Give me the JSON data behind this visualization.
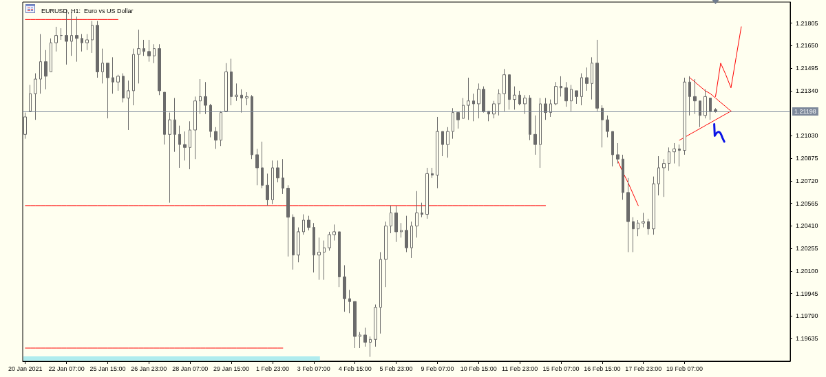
{
  "chart_data": {
    "type": "candlestick",
    "title": "EURUSD, H1:  Euro vs US Dollar",
    "color": "#6b6b6b",
    "categories": [
      "20 Jan 2021",
      null,
      null,
      null,
      null,
      null,
      null,
      null,
      "22 Jan 07:00",
      null,
      null,
      null,
      null,
      null,
      null,
      null,
      "25 Jan 15:00",
      null,
      null,
      null,
      null,
      null,
      null,
      null,
      "26 Jan 23:00",
      null,
      null,
      null,
      null,
      null,
      null,
      null,
      "28 Jan 07:00",
      null,
      null,
      null,
      null,
      null,
      null,
      null,
      "29 Jan 15:00",
      null,
      null,
      null,
      null,
      null,
      null,
      null,
      "1 Feb 23:00",
      null,
      null,
      null,
      null,
      null,
      null,
      null,
      "3 Feb 07:00",
      null,
      null,
      null,
      null,
      null,
      null,
      null,
      "4 Feb 15:00",
      null,
      null,
      null,
      null,
      null,
      null,
      null,
      "5 Feb 23:00",
      null,
      null,
      null,
      null,
      null,
      null,
      null,
      "9 Feb 07:00",
      null,
      null,
      null,
      null,
      null,
      null,
      null,
      "10 Feb 15:00",
      null,
      null,
      null,
      null,
      null,
      null,
      null,
      "11 Feb 23:00",
      null,
      null,
      null,
      null,
      null,
      null,
      null,
      "15 Feb 07:00",
      null,
      null,
      null,
      null,
      null,
      null,
      null,
      "16 Feb 15:00",
      null,
      null,
      null,
      null,
      null,
      null,
      null,
      "17 Feb 23:00",
      null,
      null,
      null,
      null,
      null,
      null,
      null,
      "19 Feb 07:00",
      null,
      null,
      null,
      null,
      null,
      null,
      null,
      null,
      null,
      null,
      null,
      null,
      null,
      null,
      null,
      null,
      null,
      null,
      null,
      null
    ],
    "ohlc": [
      [
        1.2104,
        1.2119,
        1.2101,
        1.2116
      ],
      [
        1.212,
        1.2138,
        1.212,
        1.2132
      ],
      [
        1.2132,
        1.2146,
        1.2114,
        1.2142
      ],
      [
        1.2142,
        1.2173,
        1.2132,
        1.2154
      ],
      [
        1.2154,
        1.2162,
        1.2135,
        1.2144
      ],
      [
        1.2147,
        1.217,
        1.2147,
        1.2167
      ],
      [
        1.2167,
        1.2178,
        1.2161,
        1.2172
      ],
      [
        1.2172,
        1.2177,
        1.2169,
        1.2172
      ],
      [
        1.2172,
        1.219,
        1.2152,
        1.2168
      ],
      [
        1.2168,
        1.2188,
        1.2158,
        1.2172
      ],
      [
        1.2172,
        1.2185,
        1.2154,
        1.217
      ],
      [
        1.217,
        1.2173,
        1.2161,
        1.2167
      ],
      [
        1.2167,
        1.2173,
        1.2162,
        1.2169
      ],
      [
        1.2169,
        1.2182,
        1.216,
        1.2179
      ],
      [
        1.2179,
        1.2182,
        1.2143,
        1.2147
      ],
      [
        1.2147,
        1.2163,
        1.2139,
        1.2153
      ],
      [
        1.2153,
        1.2153,
        1.2115,
        1.2143
      ],
      [
        1.2143,
        1.2157,
        1.2132,
        1.214
      ],
      [
        1.214,
        1.2145,
        1.2134,
        1.2144
      ],
      [
        1.2144,
        1.2146,
        1.2126,
        1.2129
      ],
      [
        1.2129,
        1.2141,
        1.2107,
        1.2134
      ],
      [
        1.2134,
        1.2163,
        1.2124,
        1.2159
      ],
      [
        1.2159,
        1.2176,
        1.2139,
        1.2163
      ],
      [
        1.2163,
        1.2169,
        1.2158,
        1.2161
      ],
      [
        1.2161,
        1.2169,
        1.2154,
        1.2158
      ],
      [
        1.2158,
        1.2166,
        1.2153,
        1.2163
      ],
      [
        1.2163,
        1.2166,
        1.2131,
        1.2134
      ],
      [
        1.2133,
        1.2133,
        1.2097,
        1.2104
      ],
      [
        1.2104,
        1.2119,
        1.2057,
        1.2114
      ],
      [
        1.2114,
        1.2129,
        1.2092,
        1.2104
      ],
      [
        1.2104,
        1.211,
        1.2081,
        1.2097
      ],
      [
        1.2097,
        1.2106,
        1.2086,
        1.2095
      ],
      [
        1.2095,
        1.2113,
        1.208,
        1.2107
      ],
      [
        1.2107,
        1.213,
        1.2087,
        1.2127
      ],
      [
        1.2127,
        1.2142,
        1.2118,
        1.213
      ],
      [
        1.213,
        1.214,
        1.2118,
        1.2124
      ],
      [
        1.2124,
        1.2125,
        1.2102,
        1.2106
      ],
      [
        1.2106,
        1.2109,
        1.2094,
        1.21
      ],
      [
        1.21,
        1.212,
        1.2096,
        1.2119
      ],
      [
        1.212,
        1.2153,
        1.212,
        1.2147
      ],
      [
        1.2147,
        1.2156,
        1.2124,
        1.213
      ],
      [
        1.213,
        1.2139,
        1.2127,
        1.2131
      ],
      [
        1.2131,
        1.2135,
        1.2119,
        1.2129
      ],
      [
        1.2129,
        1.2133,
        1.2124,
        1.213
      ],
      [
        1.213,
        1.2131,
        1.2087,
        1.209
      ],
      [
        1.209,
        1.2094,
        1.2069,
        1.2081
      ],
      [
        1.2081,
        1.2099,
        1.2067,
        1.2069
      ],
      [
        1.2069,
        1.2077,
        1.2055,
        1.2059
      ],
      [
        1.2059,
        1.2086,
        1.2056,
        1.2081
      ],
      [
        1.2081,
        1.2086,
        1.2071,
        1.2074
      ],
      [
        1.2074,
        1.2087,
        1.2063,
        1.2067
      ],
      [
        1.2067,
        1.2069,
        1.202,
        1.2047
      ],
      [
        1.2047,
        1.2049,
        1.2011,
        1.2021
      ],
      [
        1.2021,
        1.204,
        1.2016,
        1.2037
      ],
      [
        1.2037,
        1.2049,
        1.2035,
        1.2045
      ],
      [
        1.2045,
        1.2048,
        1.2038,
        1.204
      ],
      [
        1.204,
        1.2043,
        1.2009,
        1.2021
      ],
      [
        1.2021,
        1.2033,
        1.2004,
        1.2023
      ],
      [
        1.2023,
        1.2031,
        1.2004,
        1.2026
      ],
      [
        1.2026,
        1.2037,
        1.2024,
        1.2035
      ],
      [
        1.2035,
        1.2042,
        1.2031,
        1.2037
      ],
      [
        1.2037,
        1.2037,
        1.1999,
        1.2006
      ],
      [
        1.2006,
        1.2014,
        1.1982,
        1.1991
      ],
      [
        1.1991,
        1.1997,
        1.1981,
        1.1989
      ],
      [
        1.1989,
        1.1989,
        1.1957,
        1.1965
      ],
      [
        1.1965,
        1.1968,
        1.1957,
        1.1966
      ],
      [
        1.1966,
        1.1971,
        1.1958,
        1.1961
      ],
      [
        1.1961,
        1.1965,
        1.1951,
        1.1963
      ],
      [
        1.1963,
        1.1987,
        1.1958,
        1.1985
      ],
      [
        1.1985,
        1.2023,
        1.1967,
        1.2018
      ],
      [
        1.2018,
        1.2044,
        1.1999,
        1.2041
      ],
      [
        1.2041,
        1.2055,
        1.2036,
        1.205
      ],
      [
        1.205,
        1.2055,
        1.203,
        1.2037
      ],
      [
        1.2037,
        1.2043,
        1.2033,
        1.2038
      ],
      [
        1.2038,
        1.2048,
        1.2023,
        1.2026
      ],
      [
        1.2026,
        1.2044,
        1.2019,
        1.2041
      ],
      [
        1.2041,
        1.2065,
        1.2033,
        1.205
      ],
      [
        1.205,
        1.2057,
        1.2047,
        1.2049
      ],
      [
        1.2049,
        1.2081,
        1.2046,
        1.2077
      ],
      [
        1.2077,
        1.2081,
        1.2074,
        1.2076
      ],
      [
        1.2076,
        1.2116,
        1.2067,
        1.2106
      ],
      [
        1.2106,
        1.2106,
        1.2089,
        1.2097
      ],
      [
        1.2097,
        1.2109,
        1.2088,
        1.2106
      ],
      [
        1.2106,
        1.2122,
        1.2101,
        1.2119
      ],
      [
        1.2119,
        1.2119,
        1.2108,
        1.2114
      ],
      [
        1.2115,
        1.2129,
        1.2115,
        1.2124
      ],
      [
        1.2124,
        1.2143,
        1.2114,
        1.2127
      ],
      [
        1.2127,
        1.2132,
        1.2113,
        1.2125
      ],
      [
        1.2125,
        1.2139,
        1.2115,
        1.2135
      ],
      [
        1.2135,
        1.2137,
        1.2119,
        1.212
      ],
      [
        1.212,
        1.212,
        1.2113,
        1.2118
      ],
      [
        1.2118,
        1.2127,
        1.2115,
        1.2125
      ],
      [
        1.2125,
        1.2135,
        1.2117,
        1.2132
      ],
      [
        1.2132,
        1.2149,
        1.212,
        1.2145
      ],
      [
        1.2145,
        1.2145,
        1.2121,
        1.2128
      ],
      [
        1.2128,
        1.2137,
        1.2121,
        1.2131
      ],
      [
        1.2131,
        1.2134,
        1.2124,
        1.2125
      ],
      [
        1.2125,
        1.2131,
        1.2118,
        1.2129
      ],
      [
        1.2129,
        1.2131,
        1.21,
        1.2104
      ],
      [
        1.2104,
        1.2117,
        1.209,
        1.2097
      ],
      [
        1.2097,
        1.2129,
        1.2081,
        1.2125
      ],
      [
        1.2125,
        1.2129,
        1.2114,
        1.2119
      ],
      [
        1.2119,
        1.2128,
        1.2116,
        1.2125
      ],
      [
        1.2125,
        1.214,
        1.2124,
        1.2137
      ],
      [
        1.2137,
        1.2144,
        1.213,
        1.2136
      ],
      [
        1.2136,
        1.214,
        1.2123,
        1.2127
      ],
      [
        1.2127,
        1.2138,
        1.212,
        1.2135
      ],
      [
        1.2134,
        1.2134,
        1.2125,
        1.213
      ],
      [
        1.213,
        1.2146,
        1.2124,
        1.2143
      ],
      [
        1.2143,
        1.215,
        1.2134,
        1.2139
      ],
      [
        1.2139,
        1.2157,
        1.2128,
        1.2153
      ],
      [
        1.2153,
        1.2169,
        1.212,
        1.2122
      ],
      [
        1.2122,
        1.2124,
        1.2095,
        1.2114
      ],
      [
        1.2114,
        1.2117,
        1.2102,
        1.2106
      ],
      [
        1.2106,
        1.2106,
        1.2082,
        1.209
      ],
      [
        1.209,
        1.2098,
        1.2084,
        1.2087
      ],
      [
        1.2087,
        1.209,
        1.2059,
        1.2064
      ],
      [
        1.2064,
        1.2074,
        1.2023,
        1.2044
      ],
      [
        1.2044,
        1.2047,
        1.2023,
        1.2039
      ],
      [
        1.2039,
        1.2045,
        1.2034,
        1.2043
      ],
      [
        1.2043,
        1.205,
        1.204,
        1.2044
      ],
      [
        1.2044,
        1.2046,
        1.2035,
        1.2039
      ],
      [
        1.2039,
        1.2075,
        1.2035,
        1.207
      ],
      [
        1.207,
        1.2089,
        1.2062,
        1.2081
      ],
      [
        1.2081,
        1.2087,
        1.2061,
        1.2084
      ],
      [
        1.2084,
        1.2095,
        1.2079,
        1.2092
      ],
      [
        1.2092,
        1.2098,
        1.2084,
        1.2094
      ],
      [
        1.2094,
        1.2097,
        1.2082,
        1.2093
      ],
      [
        1.2093,
        1.2143,
        1.209,
        1.214
      ],
      [
        1.214,
        1.2144,
        1.2117,
        1.213
      ],
      [
        1.213,
        1.2142,
        1.2118,
        1.2127
      ],
      [
        1.2127,
        1.2127,
        1.2109,
        1.2117
      ],
      [
        1.2117,
        1.2135,
        1.2115,
        1.213
      ],
      [
        1.2129,
        1.2129,
        1.2114,
        1.212
      ],
      [
        1.2121,
        1.2122,
        1.2119,
        1.212
      ],
      null,
      null,
      null,
      null,
      null,
      null,
      null,
      null,
      null,
      null,
      null,
      null,
      null,
      null
    ],
    "ylim": [
      1.1948,
      1.2195
    ],
    "yticks": [
      1.19635,
      {
        "value": 1.1979,
        "label": "1.19790"
      },
      1.19945,
      {
        "value": 1.201,
        "label": "1.20100"
      },
      1.20255,
      {
        "value": 1.2041,
        "label": "1.20410"
      },
      1.20565,
      {
        "value": 1.2072,
        "label": "1.20720"
      },
      1.20875,
      {
        "value": 1.2103,
        "label": "1.21030"
      },
      {
        "value": 1.2134,
        "label": "1.21340"
      },
      1.21495,
      {
        "value": 1.2165,
        "label": "1.21650"
      },
      1.21805
    ],
    "ref_lines": [
      {
        "axis": "y",
        "value": 1.21198,
        "label": "1.21198",
        "color": "#7d889a"
      }
    ],
    "series": [
      {
        "type": "line",
        "color": "#ff0000",
        "values": [
          1.2183,
          1.2183,
          1.2183,
          1.2183,
          1.2183,
          1.2183,
          1.2183,
          1.2183,
          1.2183,
          1.2183,
          1.2183,
          1.2183,
          1.2183,
          1.2183,
          1.2183,
          1.2183,
          1.2183,
          1.2183,
          1.2183,
          null,
          null,
          null,
          null,
          null,
          null,
          null,
          null,
          null,
          null,
          null,
          null,
          null,
          null,
          null,
          null,
          null,
          null,
          null,
          null,
          null,
          null,
          null,
          null,
          null,
          null,
          null,
          null,
          null,
          null,
          null,
          null,
          null,
          null,
          null,
          null,
          null,
          null,
          null,
          null,
          null,
          null,
          null,
          null,
          null,
          null,
          null,
          null,
          null,
          null,
          null,
          null,
          null,
          null,
          null,
          null,
          null,
          null,
          null,
          null,
          null,
          null,
          null,
          null,
          null,
          null,
          null,
          null,
          null,
          null,
          null,
          null,
          null,
          null,
          null,
          null,
          null,
          null,
          null,
          null,
          null,
          null,
          null,
          null,
          null,
          null,
          null,
          null,
          null,
          null,
          null,
          null,
          null,
          null,
          null,
          null,
          null,
          null,
          null,
          null,
          null,
          null,
          null,
          null,
          null,
          null,
          null,
          null,
          null,
          null,
          null,
          null,
          null,
          null,
          null,
          null,
          null,
          null,
          null,
          null,
          null,
          null,
          null,
          null,
          null,
          null,
          null,
          null,
          null,
          null
        ]
      },
      {
        "type": "line",
        "color": "#ff0000",
        "values": [
          1.2055,
          1.2055,
          1.2055,
          1.2055,
          1.2055,
          1.2055,
          1.2055,
          1.2055,
          1.2055,
          1.2055,
          1.2055,
          1.2055,
          1.2055,
          1.2055,
          1.2055,
          1.2055,
          1.2055,
          1.2055,
          1.2055,
          1.2055,
          1.2055,
          1.2055,
          1.2055,
          1.2055,
          1.2055,
          1.2055,
          1.2055,
          1.2055,
          1.2055,
          1.2055,
          1.2055,
          1.2055,
          1.2055,
          1.2055,
          1.2055,
          1.2055,
          1.2055,
          1.2055,
          1.2055,
          1.2055,
          1.2055,
          1.2055,
          1.2055,
          1.2055,
          1.2055,
          1.2055,
          1.2055,
          1.2055,
          1.2055,
          1.2055,
          1.2055,
          1.2055,
          1.2055,
          1.2055,
          1.2055,
          1.2055,
          1.2055,
          1.2055,
          1.2055,
          1.2055,
          1.2055,
          1.2055,
          1.2055,
          1.2055,
          1.2055,
          1.2055,
          1.2055,
          1.2055,
          1.2055,
          1.2055,
          1.2055,
          1.2055,
          1.2055,
          1.2055,
          1.2055,
          1.2055,
          1.2055,
          1.2055,
          1.2055,
          1.2055,
          1.2055,
          1.2055,
          1.2055,
          1.2055,
          1.2055,
          1.2055,
          1.2055,
          1.2055,
          1.2055,
          1.2055,
          1.2055,
          1.2055,
          1.2055,
          1.2055,
          1.2055,
          1.2055,
          1.2055,
          1.2055,
          1.2055,
          1.2055,
          1.2055,
          1.2055,
          null,
          null,
          null,
          null,
          null,
          null,
          null,
          null,
          null,
          null,
          null,
          null,
          null,
          null,
          null,
          null,
          null,
          null,
          null,
          null,
          null,
          null,
          null,
          null,
          null,
          null,
          null,
          null,
          null,
          null,
          null,
          null,
          null,
          null,
          null,
          null,
          null,
          null,
          null,
          null,
          null,
          null,
          null,
          null,
          null,
          null,
          null
        ]
      },
      {
        "type": "line",
        "color": "#ff0000",
        "values": [
          1.1957,
          1.1957,
          1.1957,
          1.1957,
          1.1957,
          1.1957,
          1.1957,
          1.1957,
          1.1957,
          1.1957,
          1.1957,
          1.1957,
          1.1957,
          1.1957,
          1.1957,
          1.1957,
          1.1957,
          1.1957,
          1.1957,
          1.1957,
          1.1957,
          1.1957,
          1.1957,
          1.1957,
          1.1957,
          1.1957,
          1.1957,
          1.1957,
          1.1957,
          1.1957,
          1.1957,
          1.1957,
          1.1957,
          1.1957,
          1.1957,
          1.1957,
          1.1957,
          1.1957,
          1.1957,
          1.1957,
          1.1957,
          1.1957,
          1.1957,
          1.1957,
          1.1957,
          1.1957,
          1.1957,
          1.1957,
          1.1957,
          1.1957,
          1.1957,
          null,
          null,
          null,
          null,
          null,
          null,
          null,
          null,
          null,
          null,
          null,
          null,
          null,
          null,
          null,
          null,
          null,
          null,
          null,
          null,
          null,
          null,
          null,
          null,
          null,
          null,
          null,
          null,
          null,
          null,
          null,
          null,
          null,
          null,
          null,
          null,
          null,
          null,
          null,
          null,
          null,
          null,
          null,
          null,
          null,
          null,
          null,
          null,
          null,
          null,
          null,
          null,
          null,
          null,
          null,
          null,
          null,
          null,
          null,
          null,
          null,
          null,
          null,
          null,
          null,
          null,
          null,
          null,
          null,
          null,
          null,
          null,
          null,
          null,
          null,
          null,
          null,
          null,
          null,
          null,
          null,
          null,
          null,
          null,
          null,
          null,
          null,
          null,
          null,
          null,
          null,
          null,
          null,
          null,
          null,
          null,
          null,
          null
        ]
      },
      {
        "type": "line",
        "color": "#ff0000",
        "values": [
          null,
          null,
          null,
          null,
          null,
          null,
          null,
          null,
          null,
          null,
          null,
          null,
          null,
          null,
          null,
          null,
          null,
          null,
          null,
          null,
          null,
          null,
          null,
          null,
          null,
          null,
          null,
          null,
          null,
          null,
          null,
          null,
          null,
          null,
          null,
          null,
          null,
          null,
          null,
          null,
          null,
          null,
          null,
          null,
          null,
          null,
          null,
          null,
          null,
          null,
          null,
          null,
          null,
          null,
          null,
          null,
          null,
          null,
          null,
          null,
          null,
          null,
          null,
          null,
          null,
          null,
          null,
          null,
          null,
          null,
          null,
          null,
          null,
          null,
          null,
          null,
          null,
          null,
          null,
          null,
          null,
          null,
          null,
          null,
          null,
          null,
          null,
          null,
          null,
          null,
          null,
          null,
          null,
          null,
          null,
          null,
          null,
          null,
          null,
          null,
          null,
          null,
          null,
          null,
          null,
          null,
          null,
          null,
          null,
          null,
          null,
          null,
          null,
          null,
          null,
          1.2086,
          1.2078,
          1.2071,
          1.2063,
          1.2055,
          null,
          null,
          null,
          null,
          null,
          null,
          null,
          null,
          null,
          null,
          null,
          null,
          null,
          null,
          null,
          null,
          null,
          null,
          null,
          null,
          null,
          null,
          null,
          null,
          null,
          null,
          null,
          null,
          null
        ]
      },
      {
        "type": "line",
        "color": "#ff0000",
        "values": [
          null,
          null,
          null,
          null,
          null,
          null,
          null,
          null,
          null,
          null,
          null,
          null,
          null,
          null,
          null,
          null,
          null,
          null,
          null,
          null,
          null,
          null,
          null,
          null,
          null,
          null,
          null,
          null,
          null,
          null,
          null,
          null,
          null,
          null,
          null,
          null,
          null,
          null,
          null,
          null,
          null,
          null,
          null,
          null,
          null,
          null,
          null,
          null,
          null,
          null,
          null,
          null,
          null,
          null,
          null,
          null,
          null,
          null,
          null,
          null,
          null,
          null,
          null,
          null,
          null,
          null,
          null,
          null,
          null,
          null,
          null,
          null,
          null,
          null,
          null,
          null,
          null,
          null,
          null,
          null,
          null,
          null,
          null,
          null,
          null,
          null,
          null,
          null,
          null,
          null,
          null,
          null,
          null,
          null,
          null,
          null,
          null,
          null,
          null,
          null,
          null,
          null,
          null,
          null,
          null,
          null,
          null,
          null,
          null,
          null,
          null,
          null,
          null,
          null,
          null,
          null,
          null,
          null,
          null,
          null,
          null,
          null,
          null,
          null,
          null,
          null,
          null,
          null,
          null,
          1.2143,
          1.214,
          1.2137,
          1.2134,
          1.2132,
          1.2129,
          1.2126,
          1.2123,
          1.212,
          null,
          null,
          null,
          null,
          null,
          null,
          null,
          null,
          null,
          null,
          null
        ]
      },
      {
        "type": "line",
        "color": "#ff0000",
        "values": [
          null,
          null,
          null,
          null,
          null,
          null,
          null,
          null,
          null,
          null,
          null,
          null,
          null,
          null,
          null,
          null,
          null,
          null,
          null,
          null,
          null,
          null,
          null,
          null,
          null,
          null,
          null,
          null,
          null,
          null,
          null,
          null,
          null,
          null,
          null,
          null,
          null,
          null,
          null,
          null,
          null,
          null,
          null,
          null,
          null,
          null,
          null,
          null,
          null,
          null,
          null,
          null,
          null,
          null,
          null,
          null,
          null,
          null,
          null,
          null,
          null,
          null,
          null,
          null,
          null,
          null,
          null,
          null,
          null,
          null,
          null,
          null,
          null,
          null,
          null,
          null,
          null,
          null,
          null,
          null,
          null,
          null,
          null,
          null,
          null,
          null,
          null,
          null,
          null,
          null,
          null,
          null,
          null,
          null,
          null,
          null,
          null,
          null,
          null,
          null,
          null,
          null,
          null,
          null,
          null,
          null,
          null,
          null,
          null,
          null,
          null,
          null,
          null,
          null,
          null,
          null,
          null,
          null,
          null,
          null,
          null,
          null,
          null,
          null,
          null,
          null,
          null,
          1.21,
          1.2102,
          1.2104,
          1.2106,
          1.2108,
          1.211,
          1.2112,
          1.2114,
          1.2116,
          1.2118,
          1.212,
          null,
          null,
          null,
          null,
          null,
          null,
          null,
          null,
          null,
          null,
          null
        ]
      },
      {
        "type": "line",
        "color": "#ff0000",
        "values": [
          null,
          null,
          null,
          null,
          null,
          null,
          null,
          null,
          null,
          null,
          null,
          null,
          null,
          null,
          null,
          null,
          null,
          null,
          null,
          null,
          null,
          null,
          null,
          null,
          null,
          null,
          null,
          null,
          null,
          null,
          null,
          null,
          null,
          null,
          null,
          null,
          null,
          null,
          null,
          null,
          null,
          null,
          null,
          null,
          null,
          null,
          null,
          null,
          null,
          null,
          null,
          null,
          null,
          null,
          null,
          null,
          null,
          null,
          null,
          null,
          null,
          null,
          null,
          null,
          null,
          null,
          null,
          null,
          null,
          null,
          null,
          null,
          null,
          null,
          null,
          null,
          null,
          null,
          null,
          null,
          null,
          null,
          null,
          null,
          null,
          null,
          null,
          null,
          null,
          null,
          null,
          null,
          null,
          null,
          null,
          null,
          null,
          null,
          null,
          null,
          null,
          null,
          null,
          null,
          null,
          null,
          null,
          null,
          null,
          null,
          null,
          null,
          null,
          null,
          null,
          null,
          null,
          null,
          null,
          null,
          null,
          null,
          null,
          null,
          null,
          null,
          null,
          null,
          null,
          null,
          null,
          null,
          null,
          null,
          1.213,
          1.2153,
          1.2145,
          1.2136,
          1.2157,
          1.2178,
          null,
          null,
          null,
          null,
          null,
          null,
          null,
          null,
          null
        ]
      }
    ]
  }
}
